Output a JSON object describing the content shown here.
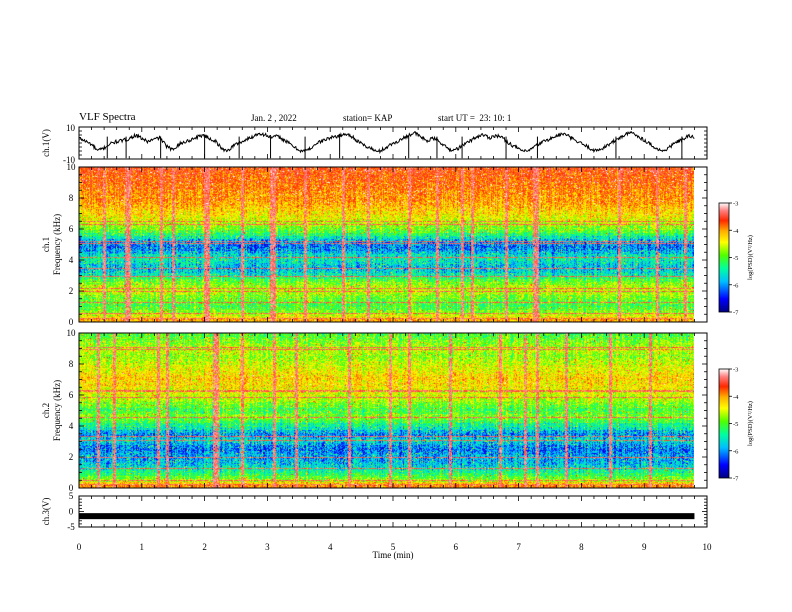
{
  "header": {
    "title": "VLF Spectra",
    "date": "Jan. 2 , 2022",
    "station": "station= KAP",
    "start": "start UT =  23: 10: 1"
  },
  "chart_data": [
    {
      "type": "line",
      "panel": "ch1-waveform",
      "ylabel": "ch.1(V)",
      "ylim": [
        -10,
        10
      ],
      "yticklabels": [
        "10",
        "-10"
      ],
      "xlim": [
        0,
        10
      ],
      "x_end": 9.8,
      "samples": [
        3.1,
        1.2,
        -0.8,
        -4.9,
        -3.2,
        -0.5,
        0.8,
        1.5,
        2.6,
        4.8,
        3.1,
        0.9,
        2.1,
        3.5,
        -1.7,
        -4.4,
        -0.9,
        0.6,
        2.0,
        3.8,
        5.1,
        2.8,
        1.0,
        -3.9,
        -4.6,
        -1.2,
        0.4,
        2.2,
        4.1,
        6.2,
        5.0,
        3.5,
        4.2,
        1.8,
        -0.7,
        -3.6,
        -5.2,
        -4.1,
        -0.7,
        1.1,
        2.7,
        3.8,
        4.7,
        5.6,
        3.9,
        0.5,
        -1.8,
        -3.4,
        -5.7,
        -3.8,
        -1.3,
        0.6,
        2.5,
        4.9,
        6.4,
        3.7,
        1.3,
        2.9,
        1.1,
        -2.6,
        -4.8,
        -3.3,
        -0.9,
        1.6,
        3.9,
        5.3,
        3.2,
        4.8,
        3.6,
        0.4,
        -2.1,
        -4.3,
        -5.6,
        -3.1,
        -0.6,
        1.5,
        2.9,
        4.6,
        5.8,
        3.6,
        1.1,
        -0.7,
        -2.8,
        -4.9,
        -3.7,
        -1.4,
        0.8,
        3.4,
        5.4,
        6.5,
        4.1,
        1.6,
        -0.8,
        -3.9,
        -5.1,
        -2.6,
        0.3,
        2.1,
        4.3,
        3.5
      ],
      "series": [
        {
          "name": "",
          "color": "#000000"
        }
      ]
    },
    {
      "type": "heatmap",
      "panel": "ch1-spectrogram",
      "ylabel": "ch.1\nFrequency (kHz)",
      "yticks": [
        0,
        2,
        4,
        6,
        8,
        10
      ],
      "ylim": [
        0,
        10
      ],
      "xlim": [
        0,
        10
      ],
      "x_end": 9.8,
      "band_profile": [
        0.66,
        0.58,
        0.52,
        0.46,
        0.42,
        0.4,
        0.42,
        0.44,
        0.46,
        0.5,
        0.52,
        0.5,
        0.46,
        0.42,
        0.36,
        0.3,
        0.26,
        0.24,
        0.25,
        0.28,
        0.3,
        0.28,
        0.24,
        0.2,
        0.18,
        0.2,
        0.24,
        0.3,
        0.36,
        0.42,
        0.46,
        0.5,
        0.52,
        0.56,
        0.58,
        0.6,
        0.62,
        0.64,
        0.66,
        0.68,
        0.68,
        0.7,
        0.7,
        0.72,
        0.72,
        0.74,
        0.74,
        0.75,
        0.76,
        0.78
      ],
      "hot_lines_khz": [
        0.25,
        0.6,
        1.3,
        2.0,
        2.2,
        3.0,
        3.5,
        4.2,
        5.1,
        5.2,
        6.3,
        6.5
      ],
      "vertical_lines_min": [
        0.4,
        0.75,
        0.8,
        1.3,
        1.5,
        2.0,
        2.05,
        2.6,
        3.05,
        3.1,
        3.6,
        4.2,
        4.6,
        5.25,
        5.7,
        6.1,
        6.25,
        6.8,
        7.25,
        7.3,
        8.6,
        9.2,
        9.65
      ],
      "colorbar": {
        "label": "log(PSD)(V²/Hz)",
        "range": [
          -7,
          -3
        ],
        "ticks": [
          "-3",
          "-4",
          "-5",
          "-6",
          "-7"
        ]
      }
    },
    {
      "type": "heatmap",
      "panel": "ch2-spectrogram",
      "ylabel": "ch.2\nFrequency (kHz)",
      "yticks": [
        0,
        2,
        4,
        6,
        8,
        10
      ],
      "ylim": [
        0,
        10
      ],
      "xlim": [
        0,
        10
      ],
      "x_end": 9.8,
      "band_profile": [
        0.7,
        0.62,
        0.5,
        0.44,
        0.38,
        0.34,
        0.3,
        0.26,
        0.24,
        0.22,
        0.22,
        0.2,
        0.18,
        0.2,
        0.24,
        0.28,
        0.24,
        0.2,
        0.24,
        0.3,
        0.34,
        0.4,
        0.44,
        0.46,
        0.42,
        0.4,
        0.44,
        0.46,
        0.5,
        0.52,
        0.55,
        0.56,
        0.58,
        0.6,
        0.6,
        0.62,
        0.6,
        0.58,
        0.56,
        0.55,
        0.52,
        0.5,
        0.48,
        0.5,
        0.52,
        0.5,
        0.48,
        0.46,
        0.44,
        0.42
      ],
      "hot_lines_khz": [
        0.25,
        0.5,
        1.3,
        2.0,
        3.1,
        3.35,
        4.6,
        5.9,
        6.25,
        6.3,
        9.0,
        9.1
      ],
      "vertical_lines_min": [
        0.3,
        0.55,
        1.25,
        1.4,
        2.15,
        2.2,
        2.6,
        3.1,
        3.45,
        4.3,
        4.95,
        5.25,
        5.9,
        6.7,
        7.1,
        7.3,
        7.75,
        8.45,
        9.1
      ],
      "colorbar": {
        "label": "log(PSD)(V²/Hz)",
        "range": [
          -7,
          -3
        ],
        "ticks": [
          "-3",
          "-4",
          "-5",
          "-6",
          "-7"
        ]
      }
    },
    {
      "type": "line",
      "panel": "ch3-waveform",
      "ylabel": "ch.3(V)",
      "ylim": [
        -5,
        5
      ],
      "yticklabels": [
        "5",
        "0",
        "-5"
      ],
      "xlim": [
        0,
        10
      ],
      "x_end": 9.8,
      "level": -1.5,
      "series": [
        {
          "name": "",
          "color": "#000000"
        }
      ]
    }
  ],
  "x_axis": {
    "label": "Time (min)",
    "ticks": [
      "0",
      "1",
      "2",
      "3",
      "4",
      "5",
      "6",
      "7",
      "8",
      "9",
      "10"
    ]
  },
  "colors": {
    "ink": "#000000",
    "colormap": [
      "#00007f",
      "#0000ff",
      "#00bfff",
      "#00ffa0",
      "#50ff00",
      "#ffff00",
      "#ffb000",
      "#ff2800",
      "#ff8080",
      "#ffffff"
    ]
  }
}
